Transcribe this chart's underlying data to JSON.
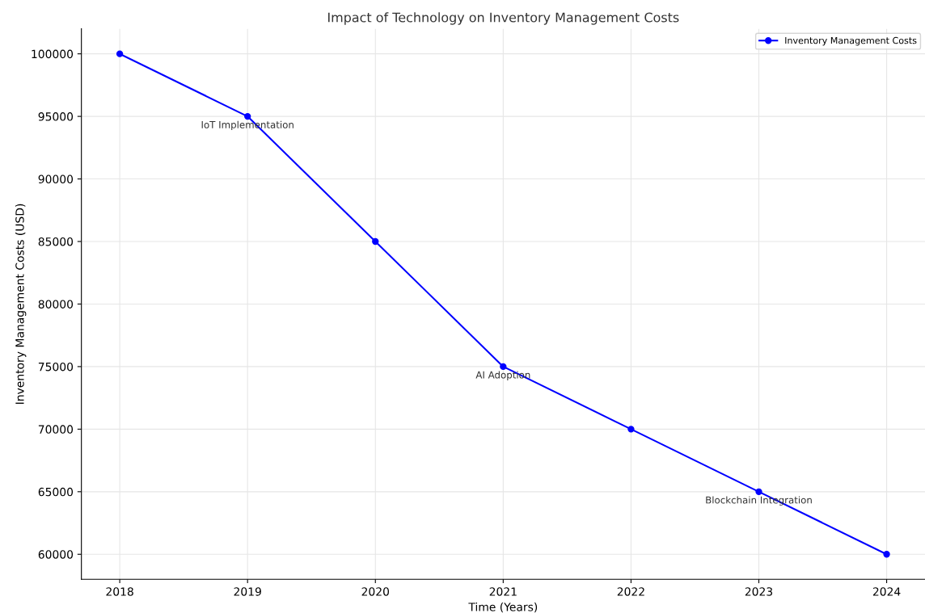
{
  "chart_data": {
    "type": "line",
    "title": "Impact of Technology on Inventory Management Costs",
    "xlabel": "Time (Years)",
    "ylabel": "Inventory Management Costs (USD)",
    "x": [
      2018,
      2019,
      2020,
      2021,
      2022,
      2023,
      2024
    ],
    "series": [
      {
        "name": "Inventory Management Costs",
        "color": "#0000ff",
        "values": [
          100000,
          95000,
          85000,
          75000,
          70000,
          65000,
          60000
        ]
      }
    ],
    "xlim": [
      2017.7,
      2024.3
    ],
    "xticks": [
      2018,
      2019,
      2020,
      2021,
      2022,
      2023,
      2024
    ],
    "ylim": [
      58000,
      102000
    ],
    "yticks": [
      60000,
      65000,
      70000,
      75000,
      80000,
      85000,
      90000,
      95000,
      100000
    ],
    "annotations": [
      {
        "text": "IoT Implementation",
        "x": 2019,
        "y": 95000
      },
      {
        "text": "AI Adoption",
        "x": 2021,
        "y": 75000
      },
      {
        "text": "Blockchain Integration",
        "x": 2023,
        "y": 65000
      }
    ],
    "grid": true,
    "legend": "top right",
    "marker": "circle",
    "line_style": "solid"
  }
}
